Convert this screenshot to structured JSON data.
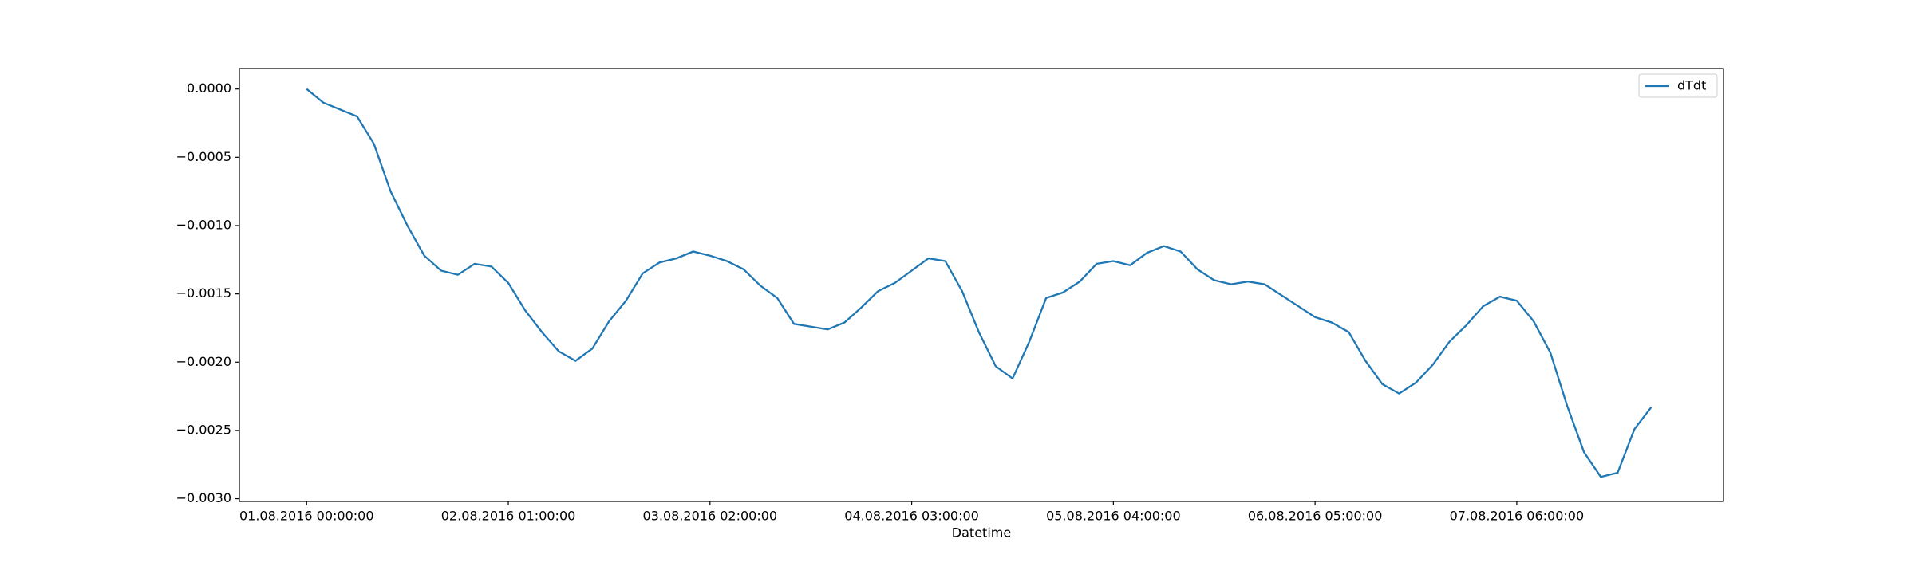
{
  "chart_data": {
    "type": "line",
    "x_label": "Datetime",
    "x": [
      0,
      2,
      4,
      6,
      8,
      10,
      12,
      14,
      16,
      18,
      20,
      22,
      24,
      26,
      28,
      30,
      32,
      34,
      36,
      38,
      40,
      42,
      44,
      46,
      48,
      50,
      52,
      54,
      56,
      58,
      60,
      62,
      64,
      66,
      68,
      70,
      72,
      74,
      76,
      78,
      80,
      82,
      84,
      86,
      88,
      90,
      92,
      94,
      96,
      98,
      100,
      102,
      104,
      106,
      108,
      110,
      112,
      114,
      116,
      118,
      120,
      122,
      124,
      126,
      128,
      130,
      132,
      134,
      136,
      138,
      140,
      142,
      144,
      146,
      148,
      150,
      152,
      154,
      156,
      158,
      160
    ],
    "series": [
      {
        "name": "dTdt",
        "color": "#1f77b4",
        "values": [
          0,
          -0.0001,
          -0.00015,
          -0.0002,
          -0.0004,
          -0.00075,
          -0.001,
          -0.00122,
          -0.00133,
          -0.00136,
          -0.00128,
          -0.0013,
          -0.00142,
          -0.00162,
          -0.00178,
          -0.00192,
          -0.00199,
          -0.0019,
          -0.0017,
          -0.00155,
          -0.00135,
          -0.00127,
          -0.00124,
          -0.00119,
          -0.00122,
          -0.00126,
          -0.00132,
          -0.00144,
          -0.00153,
          -0.00172,
          -0.00174,
          -0.00176,
          -0.00171,
          -0.0016,
          -0.00148,
          -0.00142,
          -0.00133,
          -0.00124,
          -0.00126,
          -0.00148,
          -0.00178,
          -0.00203,
          -0.00212,
          -0.00185,
          -0.00153,
          -0.00149,
          -0.00141,
          -0.00128,
          -0.00126,
          -0.00129,
          -0.0012,
          -0.00115,
          -0.00119,
          -0.00132,
          -0.0014,
          -0.00143,
          -0.00141,
          -0.00143,
          -0.00151,
          -0.00159,
          -0.00167,
          -0.00171,
          -0.00178,
          -0.00199,
          -0.00216,
          -0.00223,
          -0.00215,
          -0.00202,
          -0.00185,
          -0.00173,
          -0.00159,
          -0.00152,
          -0.00155,
          -0.0017,
          -0.00193,
          -0.00232,
          -0.00266,
          -0.00284,
          -0.00281,
          -0.00249,
          -0.00233
        ]
      }
    ],
    "xlim": [
      -8,
      168.6
    ],
    "ylim": [
      -0.00302,
      0.00015
    ],
    "xticks": [
      {
        "value": 0,
        "label": "01.08.2016 00:00:00"
      },
      {
        "value": 24,
        "label": "02.08.2016 01:00:00"
      },
      {
        "value": 48,
        "label": "03.08.2016 02:00:00"
      },
      {
        "value": 72,
        "label": "04.08.2016 03:00:00"
      },
      {
        "value": 96,
        "label": "05.08.2016 04:00:00"
      },
      {
        "value": 120,
        "label": "06.08.2016 05:00:00"
      },
      {
        "value": 144,
        "label": "07.08.2016 06:00:00"
      }
    ],
    "yticks": [
      {
        "value": 0,
        "label": "0.0000"
      },
      {
        "value": -0.0005,
        "label": "−0.0005"
      },
      {
        "value": -0.001,
        "label": "−0.0010"
      },
      {
        "value": -0.0015,
        "label": "−0.0015"
      },
      {
        "value": -0.002,
        "label": "−0.0020"
      },
      {
        "value": -0.0025,
        "label": "−0.0025"
      },
      {
        "value": -0.003,
        "label": "−0.0030"
      }
    ],
    "legend": "upper right"
  }
}
